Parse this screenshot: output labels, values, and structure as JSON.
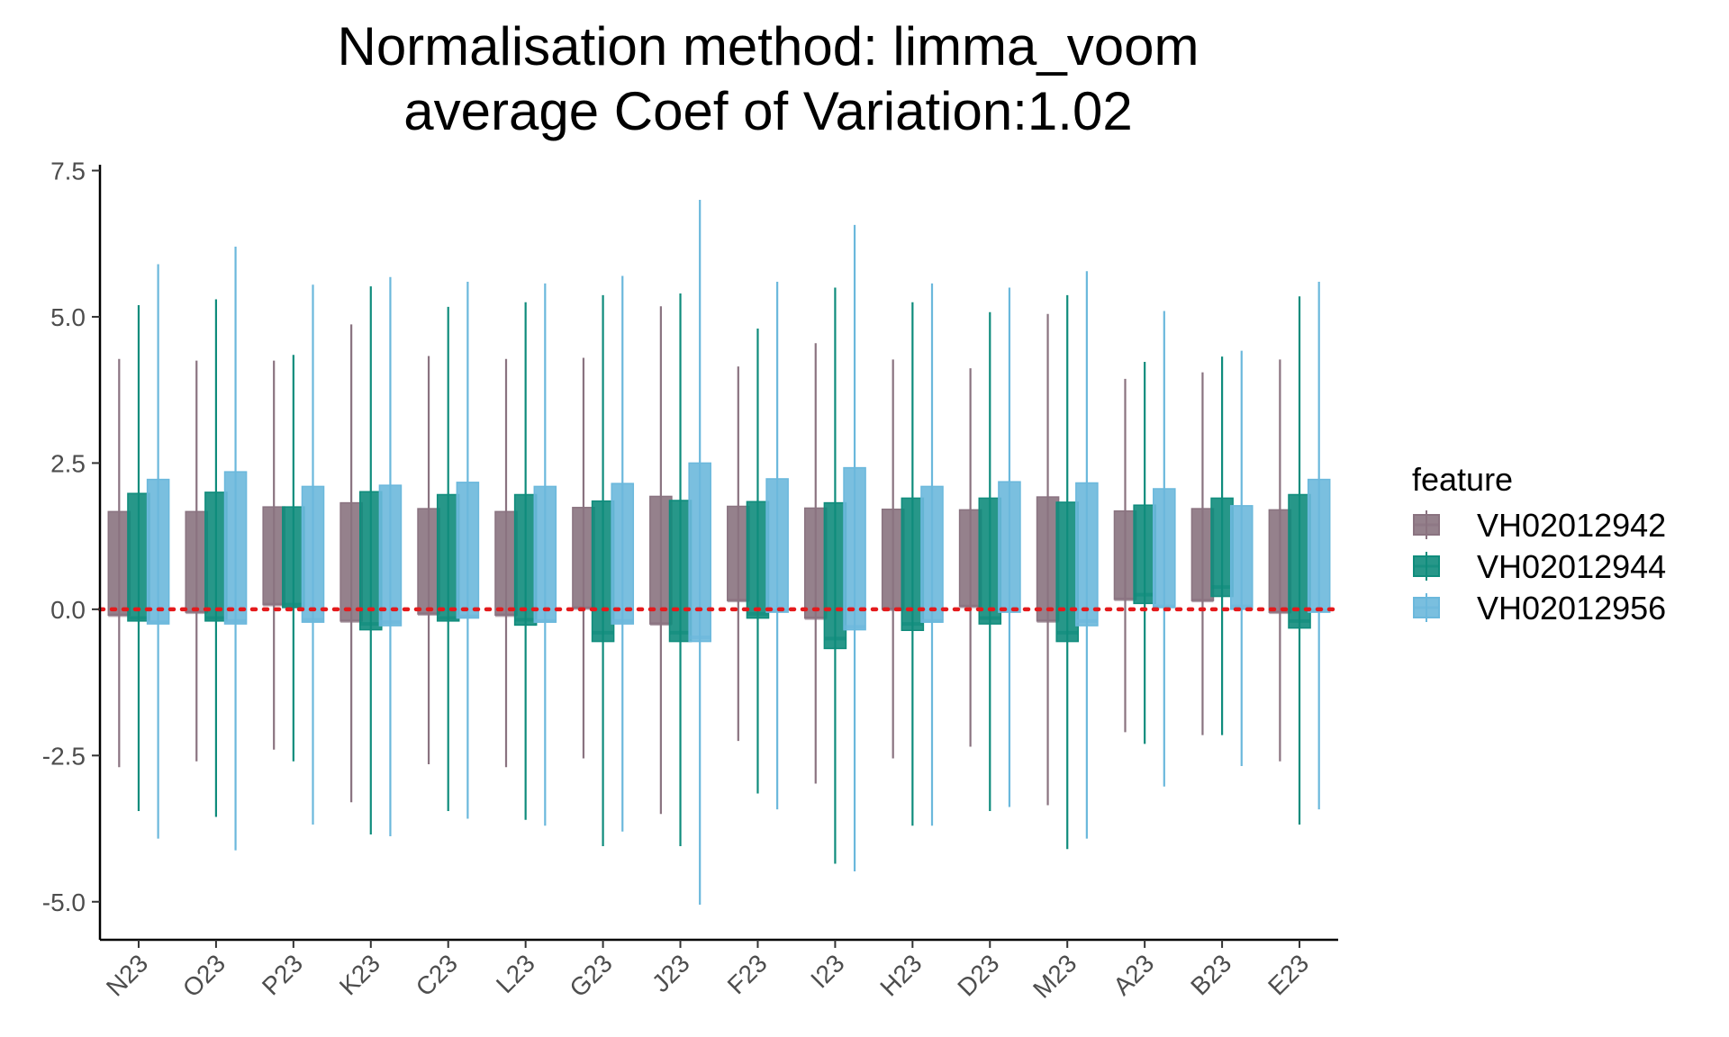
{
  "chart_data": {
    "type": "boxplot",
    "title": "Normalisation method: limma_voom",
    "subtitle": "average Coef of Variation:1.02",
    "xlabel": "",
    "ylabel": "",
    "ylim": [
      -5.65,
      7.6
    ],
    "yticks": [
      7.5,
      5.0,
      2.5,
      0.0,
      -2.5,
      -5.0
    ],
    "ytick_labels": [
      "7.5",
      "5.0",
      "2.5",
      "0.0",
      "-2.5",
      "-5.0"
    ],
    "categories": [
      "N23",
      "O23",
      "P23",
      "K23",
      "C23",
      "L23",
      "G23",
      "J23",
      "F23",
      "I23",
      "H23",
      "D23",
      "M23",
      "A23",
      "B23",
      "E23"
    ],
    "reference_line": {
      "y": 0,
      "color": "#e41a1c",
      "style": "dotted"
    },
    "grid": false,
    "legend": {
      "title": "feature",
      "position": "right"
    },
    "series": [
      {
        "name": "VH02012942",
        "color": "#8a7380",
        "boxes": [
          {
            "min": -2.7,
            "q1": -0.1,
            "median": -0.1,
            "q3": 1.67,
            "max": 4.28
          },
          {
            "min": -2.6,
            "q1": -0.05,
            "median": -0.05,
            "q3": 1.67,
            "max": 4.25
          },
          {
            "min": -2.4,
            "q1": 0.08,
            "median": 0.08,
            "q3": 1.75,
            "max": 4.25
          },
          {
            "min": -3.3,
            "q1": -0.2,
            "median": -0.2,
            "q3": 1.82,
            "max": 4.87
          },
          {
            "min": -2.65,
            "q1": -0.08,
            "median": -0.08,
            "q3": 1.72,
            "max": 4.33
          },
          {
            "min": -2.7,
            "q1": -0.1,
            "median": -0.1,
            "q3": 1.67,
            "max": 4.28
          },
          {
            "min": -2.55,
            "q1": 0.02,
            "median": 0.02,
            "q3": 1.74,
            "max": 4.3
          },
          {
            "min": -3.5,
            "q1": -0.25,
            "median": -0.25,
            "q3": 1.93,
            "max": 5.18
          },
          {
            "min": -2.25,
            "q1": 0.15,
            "median": 0.15,
            "q3": 1.76,
            "max": 4.15
          },
          {
            "min": -2.98,
            "q1": -0.15,
            "median": -0.15,
            "q3": 1.73,
            "max": 4.55
          },
          {
            "min": -2.55,
            "q1": 0.0,
            "median": 0.0,
            "q3": 1.71,
            "max": 4.27
          },
          {
            "min": -2.35,
            "q1": 0.05,
            "median": 0.05,
            "q3": 1.7,
            "max": 4.12
          },
          {
            "min": -3.35,
            "q1": -0.2,
            "median": -0.2,
            "q3": 1.92,
            "max": 5.05
          },
          {
            "min": -2.1,
            "q1": 0.17,
            "median": 0.17,
            "q3": 1.68,
            "max": 3.94
          },
          {
            "min": -2.15,
            "q1": 0.15,
            "median": 0.15,
            "q3": 1.72,
            "max": 4.05
          },
          {
            "min": -2.6,
            "q1": -0.05,
            "median": -0.05,
            "q3": 1.7,
            "max": 4.27
          }
        ]
      },
      {
        "name": "VH02012944",
        "color": "#0f8c7c",
        "boxes": [
          {
            "min": -3.45,
            "q1": -0.2,
            "median": -0.15,
            "q3": 1.98,
            "max": 5.2
          },
          {
            "min": -3.55,
            "q1": -0.2,
            "median": -0.15,
            "q3": 2.0,
            "max": 5.3
          },
          {
            "min": -2.6,
            "q1": 0.03,
            "median": 0.08,
            "q3": 1.75,
            "max": 4.35
          },
          {
            "min": -3.85,
            "q1": -0.35,
            "median": -0.25,
            "q3": 2.01,
            "max": 5.52
          },
          {
            "min": -3.45,
            "q1": -0.2,
            "median": -0.15,
            "q3": 1.96,
            "max": 5.17
          },
          {
            "min": -3.6,
            "q1": -0.27,
            "median": -0.18,
            "q3": 1.96,
            "max": 5.25
          },
          {
            "min": -4.05,
            "q1": -0.55,
            "median": -0.4,
            "q3": 1.85,
            "max": 5.37
          },
          {
            "min": -4.05,
            "q1": -0.55,
            "median": -0.4,
            "q3": 1.86,
            "max": 5.4
          },
          {
            "min": -3.15,
            "q1": -0.15,
            "median": -0.08,
            "q3": 1.84,
            "max": 4.8
          },
          {
            "min": -4.35,
            "q1": -0.67,
            "median": -0.5,
            "q3": 1.82,
            "max": 5.5
          },
          {
            "min": -3.7,
            "q1": -0.36,
            "median": -0.25,
            "q3": 1.9,
            "max": 5.25
          },
          {
            "min": -3.45,
            "q1": -0.25,
            "median": -0.15,
            "q3": 1.9,
            "max": 5.08
          },
          {
            "min": -4.1,
            "q1": -0.55,
            "median": -0.4,
            "q3": 1.83,
            "max": 5.37
          },
          {
            "min": -2.3,
            "q1": 0.1,
            "median": 0.25,
            "q3": 1.78,
            "max": 4.23
          },
          {
            "min": -2.15,
            "q1": 0.22,
            "median": 0.38,
            "q3": 1.9,
            "max": 4.32
          },
          {
            "min": -3.68,
            "q1": -0.32,
            "median": -0.2,
            "q3": 1.96,
            "max": 5.35
          }
        ]
      },
      {
        "name": "VH02012956",
        "color": "#6bb8dc",
        "boxes": [
          {
            "min": -3.92,
            "q1": -0.25,
            "median": -0.22,
            "q3": 2.22,
            "max": 5.9
          },
          {
            "min": -4.12,
            "q1": -0.25,
            "median": -0.2,
            "q3": 2.35,
            "max": 6.2
          },
          {
            "min": -3.68,
            "q1": -0.22,
            "median": -0.18,
            "q3": 2.1,
            "max": 5.55
          },
          {
            "min": -3.88,
            "q1": -0.28,
            "median": -0.22,
            "q3": 2.12,
            "max": 5.68
          },
          {
            "min": -3.58,
            "q1": -0.15,
            "median": -0.12,
            "q3": 2.17,
            "max": 5.6
          },
          {
            "min": -3.7,
            "q1": -0.22,
            "median": -0.2,
            "q3": 2.1,
            "max": 5.57
          },
          {
            "min": -3.8,
            "q1": -0.25,
            "median": -0.2,
            "q3": 2.15,
            "max": 5.7
          },
          {
            "min": -5.05,
            "q1": -0.55,
            "median": -0.48,
            "q3": 2.5,
            "max": 7.0
          },
          {
            "min": -3.42,
            "q1": -0.05,
            "median": -0.02,
            "q3": 2.23,
            "max": 5.6
          },
          {
            "min": -4.48,
            "q1": -0.35,
            "median": -0.3,
            "q3": 2.42,
            "max": 6.57
          },
          {
            "min": -3.7,
            "q1": -0.22,
            "median": -0.2,
            "q3": 2.1,
            "max": 5.57
          },
          {
            "min": -3.38,
            "q1": -0.05,
            "median": 0.0,
            "q3": 2.18,
            "max": 5.5
          },
          {
            "min": -3.92,
            "q1": -0.28,
            "median": -0.2,
            "q3": 2.16,
            "max": 5.78
          },
          {
            "min": -3.03,
            "q1": 0.03,
            "median": 0.05,
            "q3": 2.06,
            "max": 5.1
          },
          {
            "min": -2.68,
            "q1": 0.0,
            "median": 0.05,
            "q3": 1.77,
            "max": 4.42
          },
          {
            "min": -3.42,
            "q1": -0.05,
            "median": -0.02,
            "q3": 2.22,
            "max": 5.6
          }
        ]
      }
    ]
  }
}
